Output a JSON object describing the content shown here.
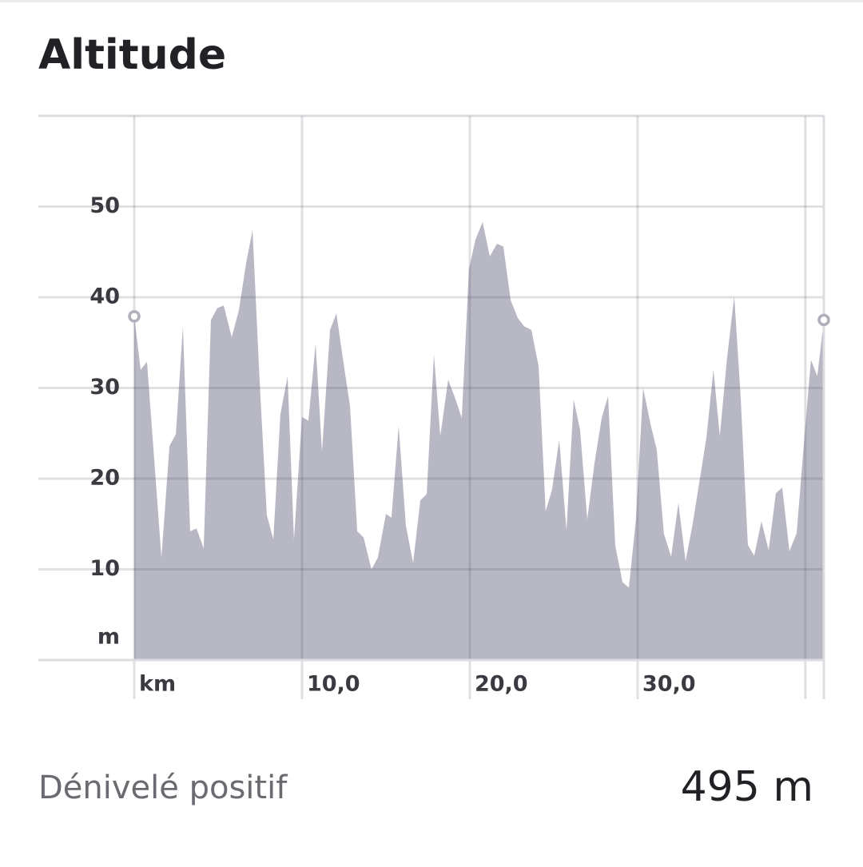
{
  "chart_data": {
    "type": "area",
    "title": "Altitude",
    "x": [
      0,
      0.38,
      0.76,
      1.62,
      2.1,
      2.48,
      2.9,
      3.33,
      3.71,
      4.14,
      4.57,
      4.95,
      5.33,
      5.81,
      6.24,
      6.67,
      7.05,
      7.48,
      7.9,
      8.29,
      8.71,
      9.14,
      9.52,
      10.0,
      10.38,
      10.81,
      11.19,
      11.67,
      12.05,
      12.43,
      12.86,
      13.29,
      13.67,
      14.14,
      14.52,
      15.0,
      15.33,
      15.76,
      16.19,
      16.62,
      17.05,
      17.43,
      17.86,
      18.24,
      18.71,
      19.1,
      19.52,
      19.95,
      20.33,
      20.76,
      21.19,
      21.62,
      22.0,
      22.43,
      22.86,
      23.24,
      23.67,
      24.1,
      24.52,
      24.9,
      25.33,
      25.76,
      26.19,
      26.57,
      27.0,
      27.43,
      27.86,
      28.24,
      28.67,
      29.1,
      29.48,
      29.9,
      30.33,
      30.76,
      31.14,
      31.57,
      32.0,
      32.43,
      32.86,
      33.29,
      33.67,
      34.1,
      34.52,
      34.9,
      35.33,
      35.76,
      36.14,
      36.57,
      36.95,
      37.38,
      37.81,
      38.24,
      38.62,
      39.05,
      39.48,
      39.9,
      40.33,
      40.71,
      41.1
    ],
    "values": [
      37.9,
      32.0,
      32.9,
      11.3,
      23.6,
      24.9,
      36.8,
      14.2,
      14.5,
      12.3,
      37.5,
      38.8,
      39.1,
      35.6,
      38.6,
      43.8,
      47.4,
      30.5,
      16.0,
      13.3,
      27.1,
      31.3,
      13.3,
      26.8,
      26.4,
      34.9,
      23.0,
      36.4,
      38.2,
      33.3,
      28.0,
      14.2,
      13.5,
      10.0,
      11.3,
      16.1,
      15.7,
      25.8,
      14.8,
      10.7,
      17.6,
      18.3,
      33.7,
      24.7,
      30.9,
      29.0,
      26.7,
      43.1,
      46.3,
      48.3,
      44.5,
      45.9,
      45.6,
      39.7,
      37.7,
      36.8,
      36.4,
      32.4,
      16.4,
      18.8,
      24.3,
      14.3,
      28.7,
      25.4,
      15.5,
      21.7,
      26.7,
      29.1,
      12.6,
      8.6,
      8.0,
      15.5,
      30.0,
      26.1,
      23.2,
      13.9,
      11.4,
      17.3,
      10.9,
      15.1,
      19.5,
      24.5,
      32.0,
      24.7,
      33.3,
      40.1,
      29.1,
      12.7,
      11.5,
      15.3,
      12.1,
      18.4,
      19.0,
      12.0,
      14.0,
      23.6,
      33.1,
      31.3,
      37.5
    ],
    "color": "#b8b8c5",
    "xlim": [
      0,
      41.1
    ],
    "ylim": [
      0,
      60
    ],
    "xticks": [
      {
        "value": 0,
        "label": "km"
      },
      {
        "value": 10,
        "label": "10,0"
      },
      {
        "value": 20,
        "label": "20,0"
      },
      {
        "value": 30,
        "label": "30,0"
      },
      {
        "value": 40,
        "label": null
      }
    ],
    "yticks": [
      {
        "value": 0,
        "label": "m"
      },
      10,
      20,
      30,
      40,
      50
    ],
    "grid": true,
    "summary_label": "Dénivelé positif",
    "summary_value": "495 m"
  }
}
